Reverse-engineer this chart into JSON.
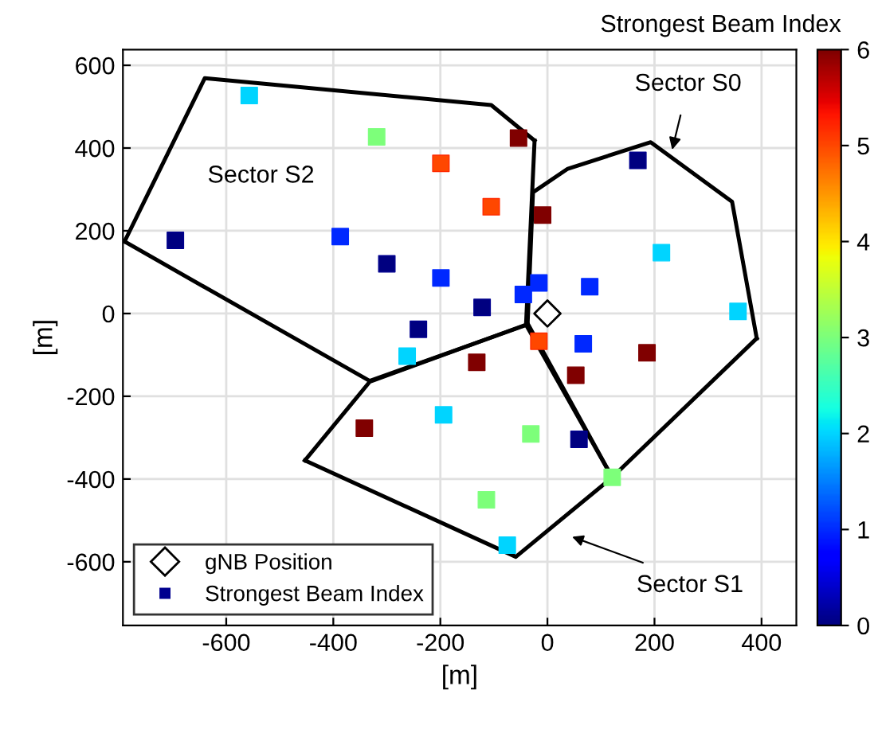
{
  "chart_data": {
    "type": "scatter",
    "xlabel": "[m]",
    "ylabel": "[m]",
    "clabel": "Strongest Beam Index",
    "clim": [
      0,
      6
    ],
    "cticks": [
      0,
      1,
      2,
      3,
      4,
      5,
      6
    ],
    "xlim": [
      -793,
      465
    ],
    "ylim": [
      -754,
      638
    ],
    "xticks": [
      -600,
      -400,
      -200,
      0,
      200,
      400
    ],
    "yticks": [
      -600,
      -400,
      -200,
      0,
      200,
      400,
      600
    ],
    "grid": true,
    "legend": "bottom left",
    "series": [
      {
        "type": "line",
        "color": "#000000",
        "x": [
          -790,
          -640,
          -105,
          -24
        ],
        "values": [
          174,
          569,
          504,
          418
        ]
      },
      {
        "type": "line",
        "color": "#000000",
        "x": [
          -790,
          -332,
          -40,
          -24
        ],
        "values": [
          174,
          -163,
          -28,
          418
        ]
      },
      {
        "type": "line",
        "color": "#000000",
        "x": [
          -37,
          -27,
          38,
          193,
          345,
          391
        ],
        "values": [
          -24,
          293,
          350,
          414,
          270,
          -60
        ]
      },
      {
        "type": "line",
        "color": "#000000",
        "x": [
          -37,
          121,
          391
        ],
        "values": [
          -24,
          -396,
          -60
        ]
      },
      {
        "type": "line",
        "color": "#000000",
        "x": [
          -453,
          -332,
          -40,
          121
        ],
        "values": [
          -355,
          -165,
          -27,
          -396
        ]
      },
      {
        "type": "line",
        "color": "#000000",
        "x": [
          -453,
          -59,
          121
        ],
        "values": [
          -355,
          -588,
          -396
        ]
      },
      {
        "name": "gNB Position",
        "marker": "diamond",
        "color": "#000000",
        "x": [
          0
        ],
        "values": [
          0
        ]
      },
      {
        "name": "Strongest Beam Index",
        "marker": "square",
        "x": [
          -557,
          -319,
          -199,
          -54,
          -105,
          -9,
          -695,
          -387,
          -300,
          -199,
          -16,
          -45,
          -122,
          -241,
          -262,
          -16,
          -132,
          169,
          213,
          79,
          356,
          67,
          186,
          53,
          -342,
          -194,
          -31,
          -114,
          -75,
          59,
          121
        ],
        "values": [
          527,
          427,
          363,
          424,
          258,
          238,
          177,
          186,
          120,
          86,
          74,
          46,
          15,
          -38,
          -103,
          -67,
          -118,
          370,
          147,
          65,
          5,
          -73,
          -95,
          -149,
          -277,
          -245,
          -291,
          -450,
          -560,
          -304,
          -396
        ],
        "cvalues": [
          2,
          3,
          5,
          6,
          5,
          6,
          0,
          1,
          0,
          1,
          1,
          1,
          0,
          0,
          2,
          5,
          6,
          0,
          2,
          1,
          2,
          1,
          6,
          6,
          6,
          2,
          3,
          3,
          2,
          0,
          3
        ],
        "colors": [
          "#00d4ff",
          "#80ff80",
          "#ff2a00",
          "#800000",
          "#ff2a00",
          "#800000",
          "#00008f",
          "#002aff",
          "#00008f",
          "#002aff",
          "#002aff",
          "#002aff",
          "#00008f",
          "#00008f",
          "#00d4ff",
          "#ff2a00",
          "#800000",
          "#00008f",
          "#00d4ff",
          "#002aff",
          "#00d4ff",
          "#002aff",
          "#800000",
          "#800000",
          "#800000",
          "#00d4ff",
          "#80ff80",
          "#80ff80",
          "#00d4ff",
          "#00008f",
          "#80ff80"
        ]
      }
    ],
    "annotations": [
      {
        "text": "Sector S0",
        "x": 233,
        "y": 396
      },
      "Sector S1",
      "Sector S2"
    ]
  }
}
